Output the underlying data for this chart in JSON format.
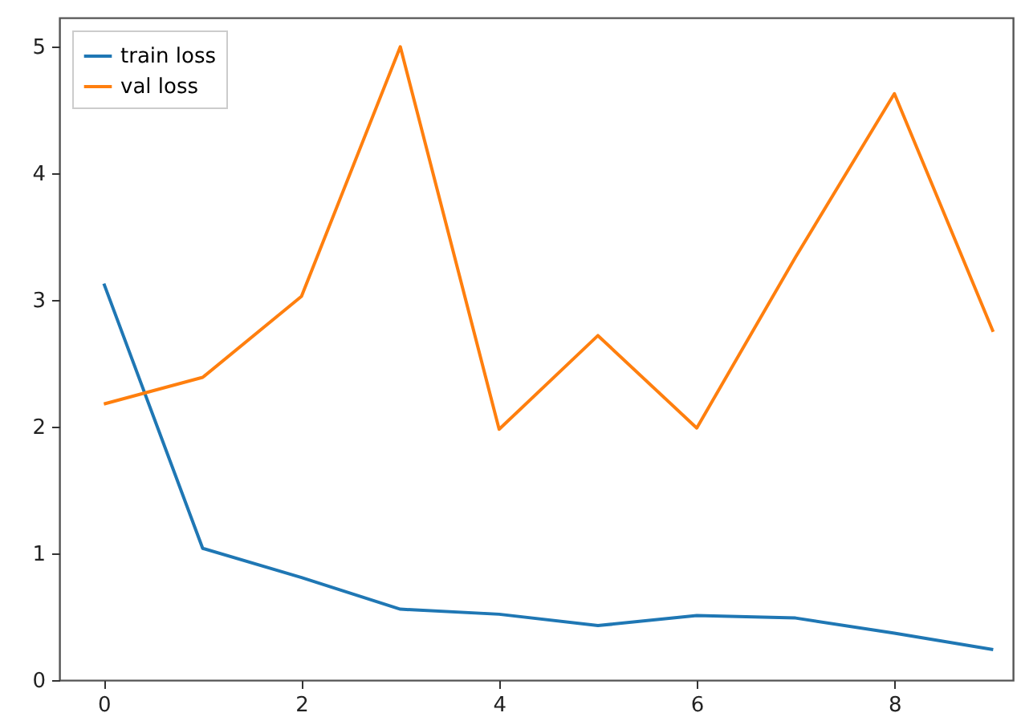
{
  "chart_data": {
    "type": "line",
    "x": [
      0,
      1,
      2,
      3,
      4,
      5,
      6,
      7,
      8,
      9
    ],
    "series": [
      {
        "name": "train loss",
        "color": "#1f77b4",
        "values": [
          3.13,
          1.04,
          0.81,
          0.56,
          0.52,
          0.43,
          0.51,
          0.49,
          0.37,
          0.24
        ]
      },
      {
        "name": "val loss",
        "color": "#ff7f0e",
        "values": [
          2.18,
          2.39,
          3.03,
          5.0,
          1.98,
          2.72,
          1.99,
          3.34,
          4.63,
          2.75
        ]
      }
    ],
    "xlim": [
      -0.45,
      9.2
    ],
    "ylim": [
      0,
      5.23
    ],
    "xticks": [
      0,
      2,
      4,
      6,
      8
    ],
    "yticks": [
      0,
      1,
      2,
      3,
      4,
      5
    ],
    "grid": false,
    "legend": "top left",
    "marker": "none",
    "line_style": "solid"
  }
}
